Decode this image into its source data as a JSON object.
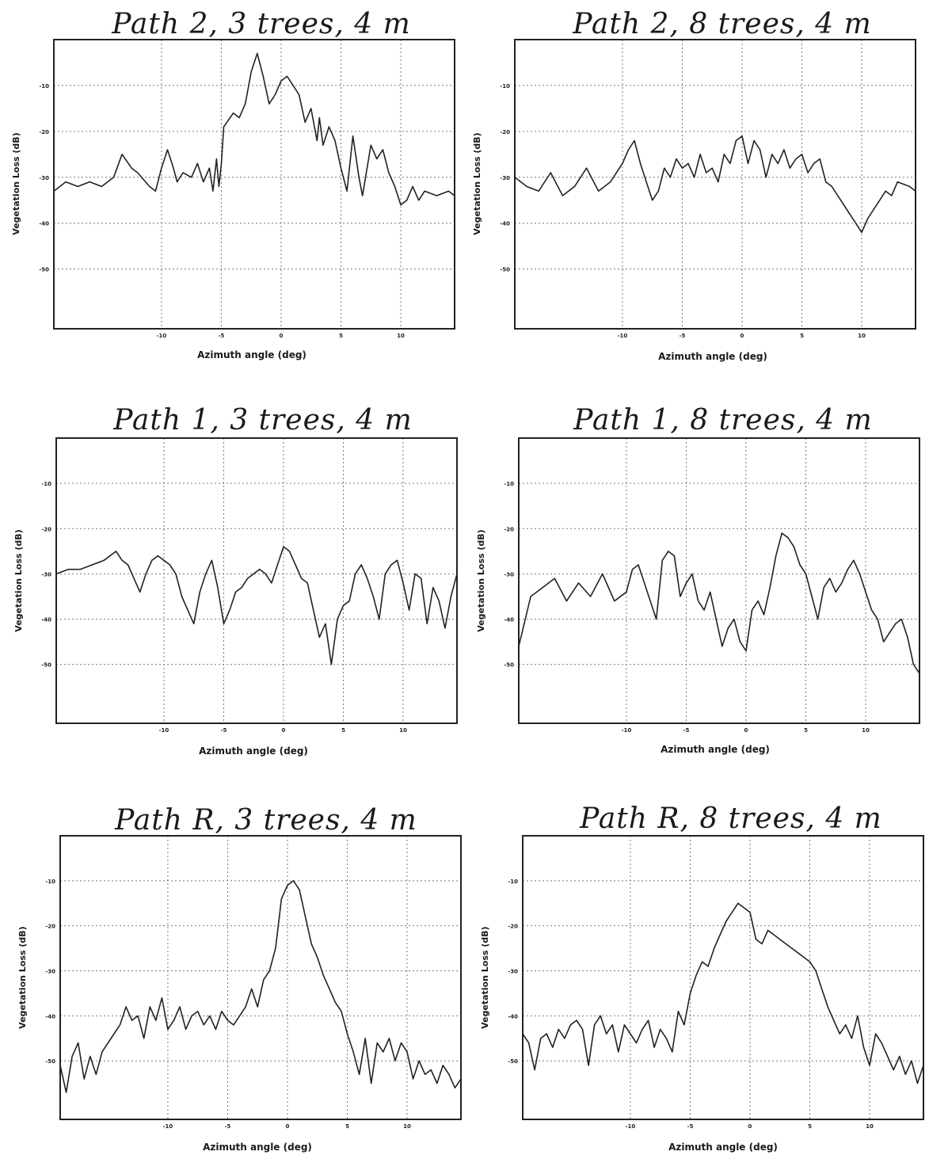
{
  "chart_data": [
    {
      "type": "line",
      "title": "Path 2, 3 trees, 4 m",
      "xlabel": "Azimuth angle (deg)",
      "ylabel": "Vegetation Loss (dB)",
      "xlim": [
        -19,
        14.5
      ],
      "ylim": [
        -63,
        0
      ],
      "xticks": [
        -10,
        -5,
        0,
        5,
        10
      ],
      "yticks": [
        -10,
        -20,
        -30,
        -40,
        -50
      ],
      "grid": true,
      "series": [
        {
          "x": [
            -19,
            -18,
            -17,
            -16,
            -15,
            -14,
            -13.3,
            -12.5,
            -12,
            -11,
            -10.5,
            -10,
            -9.5,
            -9,
            -8.7,
            -8.2,
            -7.5,
            -7,
            -6.5,
            -6,
            -5.7,
            -5.4,
            -5.2,
            -5,
            -4.8,
            -4,
            -3.5,
            -3,
            -2.5,
            -2,
            -1.5,
            -1,
            -0.5,
            0,
            0.5,
            1,
            1.5,
            2,
            2.5,
            3,
            3.2,
            3.5,
            4,
            4.5,
            5,
            5.5,
            6,
            6.5,
            6.8,
            7.5,
            8,
            8.5,
            9,
            9.5,
            10,
            10.5,
            11,
            11.5,
            12,
            13,
            14,
            14.5
          ],
          "y": [
            -33,
            -31,
            -32,
            -31,
            -32,
            -30,
            -25,
            -28,
            -29,
            -32,
            -33,
            -28,
            -24,
            -28,
            -31,
            -29,
            -30,
            -27,
            -31,
            -28,
            -33,
            -26,
            -32,
            -27,
            -19,
            -16,
            -17,
            -14,
            -7,
            -3,
            -8,
            -14,
            -12,
            -9,
            -8,
            -10,
            -12,
            -18,
            -15,
            -22,
            -17,
            -23,
            -19,
            -22,
            -28,
            -33,
            -21,
            -30,
            -34,
            -23,
            -26,
            -24,
            -29,
            -32,
            -36,
            -35,
            -32,
            -35,
            -33,
            -34,
            -33,
            -34
          ]
        }
      ]
    },
    {
      "type": "line",
      "title": "Path 2, 8 trees, 4 m",
      "xlabel": "Azimuth angle (deg)",
      "ylabel": "Vegetation Loss (dB)",
      "xlim": [
        -19,
        14.5
      ],
      "ylim": [
        -63,
        0
      ],
      "xticks": [
        -10,
        -5,
        0,
        5,
        10
      ],
      "yticks": [
        -10,
        -20,
        -30,
        -40,
        -50
      ],
      "grid": true,
      "series": [
        {
          "x": [
            -19,
            -18,
            -17,
            -16,
            -15,
            -14,
            -13,
            -12,
            -11,
            -10,
            -9.5,
            -9,
            -8.5,
            -8,
            -7.5,
            -7,
            -6.5,
            -6,
            -5.5,
            -5,
            -4.5,
            -4,
            -3.5,
            -3,
            -2.5,
            -2,
            -1.5,
            -1,
            -0.5,
            0,
            0.5,
            1,
            1.5,
            2,
            2.5,
            3,
            3.5,
            4,
            4.5,
            5,
            5.5,
            6,
            6.5,
            7,
            7.5,
            8,
            8.5,
            9,
            9.5,
            10,
            10.5,
            11,
            11.5,
            12,
            12.5,
            13,
            14,
            14.5
          ],
          "y": [
            -30,
            -32,
            -33,
            -29,
            -34,
            -32,
            -28,
            -33,
            -31,
            -27,
            -24,
            -22,
            -27,
            -31,
            -35,
            -33,
            -28,
            -30,
            -26,
            -28,
            -27,
            -30,
            -25,
            -29,
            -28,
            -31,
            -25,
            -27,
            -22,
            -21,
            -27,
            -22,
            -24,
            -30,
            -25,
            -27,
            -24,
            -28,
            -26,
            -25,
            -29,
            -27,
            -26,
            -31,
            -32,
            -34,
            -36,
            -38,
            -40,
            -42,
            -39,
            -37,
            -35,
            -33,
            -34,
            -31,
            -32,
            -33
          ]
        }
      ]
    },
    {
      "type": "line",
      "title": "Path 1, 3 trees, 4 m",
      "xlabel": "Azimuth angle (deg)",
      "ylabel": "Vegetation Loss (dB)",
      "xlim": [
        -19,
        14.5
      ],
      "ylim": [
        -63,
        0
      ],
      "xticks": [
        -10,
        -5,
        0,
        5,
        10
      ],
      "yticks": [
        -10,
        -20,
        -30,
        -40,
        -50
      ],
      "grid": true,
      "series": [
        {
          "x": [
            -19,
            -18,
            -17,
            -16,
            -15,
            -14,
            -13.5,
            -13,
            -12,
            -11.5,
            -11,
            -10.5,
            -10,
            -9.5,
            -9,
            -8.5,
            -8,
            -7.5,
            -7,
            -6.5,
            -6,
            -5.5,
            -5,
            -4.5,
            -4,
            -3.5,
            -3,
            -2.5,
            -2,
            -1.5,
            -1,
            -0.5,
            0,
            0.5,
            1,
            1.5,
            2,
            2.5,
            3,
            3.5,
            4,
            4.5,
            5,
            5.5,
            6,
            6.5,
            7,
            7.5,
            8,
            8.5,
            9,
            9.5,
            10,
            10.5,
            11,
            11.5,
            12,
            12.5,
            13,
            13.5,
            14,
            14.5
          ],
          "y": [
            -30,
            -29,
            -29,
            -28,
            -27,
            -25,
            -27,
            -28,
            -34,
            -30,
            -27,
            -26,
            -27,
            -28,
            -30,
            -35,
            -38,
            -41,
            -34,
            -30,
            -27,
            -33,
            -41,
            -38,
            -34,
            -33,
            -31,
            -30,
            -29,
            -30,
            -32,
            -28,
            -24,
            -25,
            -28,
            -31,
            -32,
            -38,
            -44,
            -41,
            -50,
            -40,
            -37,
            -36,
            -30,
            -28,
            -31,
            -35,
            -40,
            -30,
            -28,
            -27,
            -32,
            -38,
            -30,
            -31,
            -41,
            -33,
            -36,
            -42,
            -35,
            -30
          ]
        }
      ]
    },
    {
      "type": "line",
      "title": "Path 1, 8 trees, 4 m",
      "xlabel": "Azimuth angle (deg)",
      "ylabel": "Vegetation Loss (dB)",
      "xlim": [
        -19,
        14.5
      ],
      "ylim": [
        -63,
        0
      ],
      "xticks": [
        -10,
        -5,
        0,
        5,
        10
      ],
      "yticks": [
        -10,
        -20,
        -30,
        -40,
        -50
      ],
      "grid": true,
      "series": [
        {
          "x": [
            -19,
            -18,
            -17,
            -16,
            -15,
            -14,
            -13,
            -12,
            -11,
            -10,
            -9.5,
            -9,
            -8.5,
            -8,
            -7.5,
            -7,
            -6.5,
            -6,
            -5.5,
            -5,
            -4.5,
            -4,
            -3.5,
            -3,
            -2.5,
            -2,
            -1.5,
            -1,
            -0.5,
            0,
            0.5,
            1,
            1.5,
            2,
            2.5,
            3,
            3.5,
            4,
            4.5,
            5,
            5.5,
            6,
            6.5,
            7,
            7.5,
            8,
            8.5,
            9,
            9.5,
            10,
            10.5,
            11,
            11.5,
            12,
            12.5,
            13,
            13.5,
            14,
            14.5
          ],
          "y": [
            -46,
            -35,
            -33,
            -31,
            -36,
            -32,
            -35,
            -30,
            -36,
            -34,
            -29,
            -28,
            -32,
            -36,
            -40,
            -27,
            -25,
            -26,
            -35,
            -32,
            -30,
            -36,
            -38,
            -34,
            -40,
            -46,
            -42,
            -40,
            -45,
            -47,
            -38,
            -36,
            -39,
            -33,
            -26,
            -21,
            -22,
            -24,
            -28,
            -30,
            -35,
            -40,
            -33,
            -31,
            -34,
            -32,
            -29,
            -27,
            -30,
            -34,
            -38,
            -40,
            -45,
            -43,
            -41,
            -40,
            -44,
            -50,
            -52
          ]
        }
      ]
    },
    {
      "type": "line",
      "title": "Path R, 3 trees, 4 m",
      "xlabel": "Azimuth angle (deg)",
      "ylabel": "Vegetation Loss (dB)",
      "xlim": [
        -19,
        14.5
      ],
      "ylim": [
        -63,
        0
      ],
      "xticks": [
        -10,
        -5,
        0,
        5,
        10
      ],
      "yticks": [
        -10,
        -20,
        -30,
        -40,
        -50
      ],
      "grid": true,
      "series": [
        {
          "x": [
            -19,
            -18.5,
            -18,
            -17.5,
            -17,
            -16.5,
            -16,
            -15.5,
            -15,
            -14.5,
            -14,
            -13.5,
            -13,
            -12.5,
            -12,
            -11.5,
            -11,
            -10.5,
            -10,
            -9.5,
            -9,
            -8.5,
            -8,
            -7.5,
            -7,
            -6.5,
            -6,
            -5.5,
            -5,
            -4.5,
            -4,
            -3.5,
            -3,
            -2.5,
            -2,
            -1.5,
            -1,
            -0.5,
            0,
            0.5,
            1,
            1.5,
            2,
            2.5,
            3,
            3.5,
            4,
            4.5,
            5,
            5.5,
            6,
            6.5,
            7,
            7.5,
            8,
            8.5,
            9,
            9.5,
            10,
            10.5,
            11,
            11.5,
            12,
            12.5,
            13,
            13.5,
            14,
            14.5
          ],
          "y": [
            -51,
            -57,
            -49,
            -46,
            -54,
            -49,
            -53,
            -48,
            -46,
            -44,
            -42,
            -38,
            -41,
            -40,
            -45,
            -38,
            -41,
            -36,
            -43,
            -41,
            -38,
            -43,
            -40,
            -39,
            -42,
            -40,
            -43,
            -39,
            -41,
            -42,
            -40,
            -38,
            -34,
            -38,
            -32,
            -30,
            -25,
            -14,
            -11,
            -10,
            -12,
            -18,
            -24,
            -27,
            -31,
            -34,
            -37,
            -39,
            -44,
            -48,
            -53,
            -45,
            -55,
            -46,
            -48,
            -45,
            -50,
            -46,
            -48,
            -54,
            -50,
            -53,
            -52,
            -55,
            -51,
            -53,
            -56,
            -54
          ]
        }
      ]
    },
    {
      "type": "line",
      "title": "Path R, 8 trees, 4 m",
      "xlabel": "Azimuth angle (deg)",
      "ylabel": "Vegetation Loss (dB)",
      "xlim": [
        -19,
        14.5
      ],
      "ylim": [
        -63,
        0
      ],
      "xticks": [
        -10,
        -5,
        0,
        5,
        10
      ],
      "yticks": [
        -10,
        -20,
        -30,
        -40,
        -50
      ],
      "grid": true,
      "series": [
        {
          "x": [
            -19,
            -18.5,
            -18,
            -17.5,
            -17,
            -16.5,
            -16,
            -15.5,
            -15,
            -14.5,
            -14,
            -13.5,
            -13,
            -12.5,
            -12,
            -11.5,
            -11,
            -10.5,
            -10,
            -9.5,
            -9,
            -8.5,
            -8,
            -7.5,
            -7,
            -6.5,
            -6,
            -5.5,
            -5,
            -4.5,
            -4,
            -3.5,
            -3,
            -2.5,
            -2,
            -1.5,
            -1,
            -0.5,
            0,
            0.5,
            1,
            1.5,
            2,
            2.5,
            3,
            3.5,
            4,
            4.5,
            5,
            5.5,
            6,
            6.5,
            7,
            7.5,
            8,
            8.5,
            9,
            9.5,
            10,
            10.5,
            11,
            11.5,
            12,
            12.5,
            13,
            13.5,
            14,
            14.5
          ],
          "y": [
            -44,
            -46,
            -52,
            -45,
            -44,
            -47,
            -43,
            -45,
            -42,
            -41,
            -43,
            -51,
            -42,
            -40,
            -44,
            -42,
            -48,
            -42,
            -44,
            -46,
            -43,
            -41,
            -47,
            -43,
            -45,
            -48,
            -39,
            -42,
            -35,
            -31,
            -28,
            -29,
            -25,
            -22,
            -19,
            -17,
            -15,
            -16,
            -17,
            -23,
            -24,
            -21,
            -22,
            -23,
            -24,
            -25,
            -26,
            -27,
            -28,
            -30,
            -34,
            -38,
            -41,
            -44,
            -42,
            -45,
            -40,
            -47,
            -51,
            -44,
            -46,
            -49,
            -52,
            -49,
            -53,
            -50,
            -55,
            -51
          ]
        }
      ]
    }
  ]
}
